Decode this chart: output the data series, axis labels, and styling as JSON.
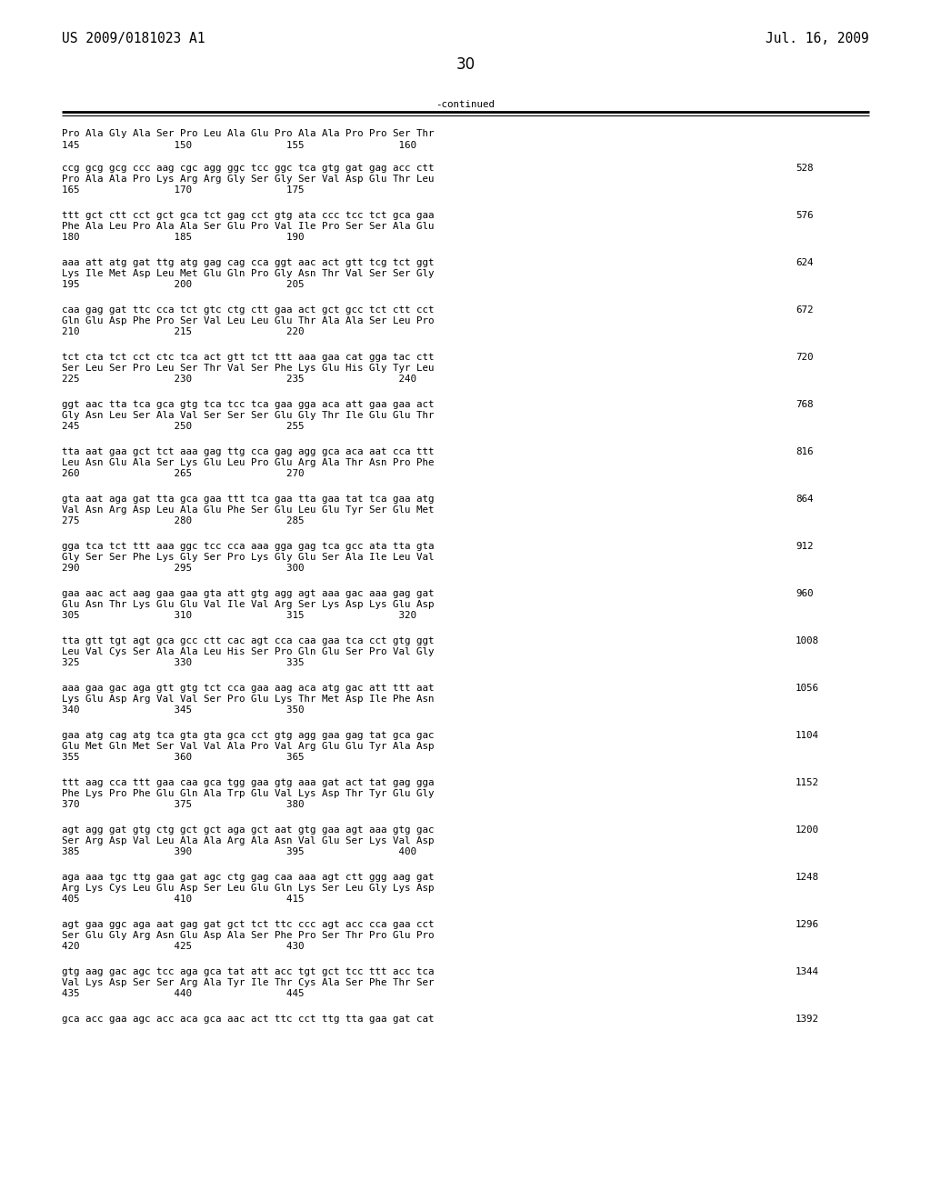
{
  "header_left": "US 2009/0181023 A1",
  "header_right": "Jul. 16, 2009",
  "page_number": "30",
  "continued_label": "-continued",
  "background_color": "#ffffff",
  "text_color": "#000000",
  "font_size_header": 10.5,
  "font_size_body": 7.8,
  "font_size_page": 12,
  "intro_aa_line": "Pro Ala Gly Ala Ser Pro Leu Ala Glu Pro Ala Ala Pro Pro Ser Thr",
  "intro_num_line": "145                150                155                160",
  "sequence_blocks": [
    {
      "nuc": "ccg gcg gcg ccc aag cgc agg ggc tcc ggc tca gtg gat gag acc ctt",
      "aa": "Pro Ala Ala Pro Lys Arg Arg Gly Ser Gly Ser Val Asp Glu Thr Leu",
      "pos": "165                170                175",
      "num": "528"
    },
    {
      "nuc": "ttt gct ctt cct gct gca tct gag cct gtg ata ccc tcc tct gca gaa",
      "aa": "Phe Ala Leu Pro Ala Ala Ser Glu Pro Val Ile Pro Ser Ser Ala Glu",
      "pos": "180                185                190",
      "num": "576"
    },
    {
      "nuc": "aaa att atg gat ttg atg gag cag cca ggt aac act gtt tcg tct ggt",
      "aa": "Lys Ile Met Asp Leu Met Glu Gln Pro Gly Asn Thr Val Ser Ser Gly",
      "pos": "195                200                205",
      "num": "624"
    },
    {
      "nuc": "caa gag gat ttc cca tct gtc ctg ctt gaa act gct gcc tct ctt cct",
      "aa": "Gln Glu Asp Phe Pro Ser Val Leu Leu Glu Thr Ala Ala Ser Leu Pro",
      "pos": "210                215                220",
      "num": "672"
    },
    {
      "nuc": "tct cta tct cct ctc tca act gtt tct ttt aaa gaa cat gga tac ctt",
      "aa": "Ser Leu Ser Pro Leu Ser Thr Val Ser Phe Lys Glu His Gly Tyr Leu",
      "pos": "225                230                235                240",
      "num": "720"
    },
    {
      "nuc": "ggt aac tta tca gca gtg tca tcc tca gaa gga aca att gaa gaa act",
      "aa": "Gly Asn Leu Ser Ala Val Ser Ser Ser Glu Gly Thr Ile Glu Glu Thr",
      "pos": "245                250                255",
      "num": "768"
    },
    {
      "nuc": "tta aat gaa gct tct aaa gag ttg cca gag agg gca aca aat cca ttt",
      "aa": "Leu Asn Glu Ala Ser Lys Glu Leu Pro Glu Arg Ala Thr Asn Pro Phe",
      "pos": "260                265                270",
      "num": "816"
    },
    {
      "nuc": "gta aat aga gat tta gca gaa ttt tca gaa tta gaa tat tca gaa atg",
      "aa": "Val Asn Arg Asp Leu Ala Glu Phe Ser Glu Leu Glu Tyr Ser Glu Met",
      "pos": "275                280                285",
      "num": "864"
    },
    {
      "nuc": "gga tca tct ttt aaa ggc tcc cca aaa gga gag tca gcc ata tta gta",
      "aa": "Gly Ser Ser Phe Lys Gly Ser Pro Lys Gly Glu Ser Ala Ile Leu Val",
      "pos": "290                295                300",
      "num": "912"
    },
    {
      "nuc": "gaa aac act aag gaa gaa gta att gtg agg agt aaa gac aaa gag gat",
      "aa": "Glu Asn Thr Lys Glu Glu Val Ile Val Arg Ser Lys Asp Lys Glu Asp",
      "pos": "305                310                315                320",
      "num": "960"
    },
    {
      "nuc": "tta gtt tgt agt gca gcc ctt cac agt cca caa gaa tca cct gtg ggt",
      "aa": "Leu Val Cys Ser Ala Ala Leu His Ser Pro Gln Glu Ser Pro Val Gly",
      "pos": "325                330                335",
      "num": "1008"
    },
    {
      "nuc": "aaa gaa gac aga gtt gtg tct cca gaa aag aca atg gac att ttt aat",
      "aa": "Lys Glu Asp Arg Val Val Ser Pro Glu Lys Thr Met Asp Ile Phe Asn",
      "pos": "340                345                350",
      "num": "1056"
    },
    {
      "nuc": "gaa atg cag atg tca gta gta gca cct gtg agg gaa gag tat gca gac",
      "aa": "Glu Met Gln Met Ser Val Val Ala Pro Val Arg Glu Glu Tyr Ala Asp",
      "pos": "355                360                365",
      "num": "1104"
    },
    {
      "nuc": "ttt aag cca ttt gaa caa gca tgg gaa gtg aaa gat act tat gag gga",
      "aa": "Phe Lys Pro Phe Glu Gln Ala Trp Glu Val Lys Asp Thr Tyr Glu Gly",
      "pos": "370                375                380",
      "num": "1152"
    },
    {
      "nuc": "agt agg gat gtg ctg gct gct aga gct aat gtg gaa agt aaa gtg gac",
      "aa": "Ser Arg Asp Val Leu Ala Ala Arg Ala Asn Val Glu Ser Lys Val Asp",
      "pos": "385                390                395                400",
      "num": "1200"
    },
    {
      "nuc": "aga aaa tgc ttg gaa gat agc ctg gag caa aaa agt ctt ggg aag gat",
      "aa": "Arg Lys Cys Leu Glu Asp Ser Leu Glu Gln Lys Ser Leu Gly Lys Asp",
      "pos": "405                410                415",
      "num": "1248"
    },
    {
      "nuc": "agt gaa ggc aga aat gag gat gct tct ttc ccc agt acc cca gaa cct",
      "aa": "Ser Glu Gly Arg Asn Glu Asp Ala Ser Phe Pro Ser Thr Pro Glu Pro",
      "pos": "420                425                430",
      "num": "1296"
    },
    {
      "nuc": "gtg aag gac agc tcc aga gca tat att acc tgt gct tcc ttt acc tca",
      "aa": "Val Lys Asp Ser Ser Arg Ala Tyr Ile Thr Cys Ala Ser Phe Thr Ser",
      "pos": "435                440                445",
      "num": "1344"
    },
    {
      "nuc": "gca acc gaa agc acc aca gca aac act ttc cct ttg tta gaa gat cat",
      "aa": "",
      "pos": "",
      "num": "1392"
    }
  ]
}
